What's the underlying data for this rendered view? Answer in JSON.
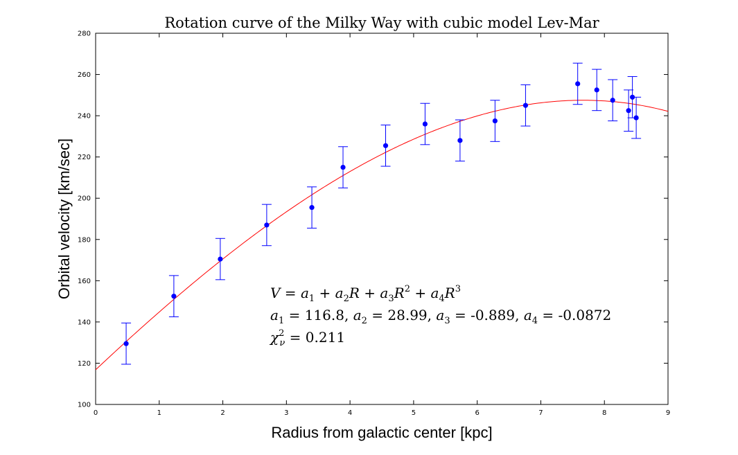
{
  "chart_data": {
    "type": "scatter",
    "title": "Rotation curve of the Milky Way with cubic model Lev-Mar",
    "xlabel": "Radius from galactic center [kpc]",
    "ylabel": "Orbital velocity [km/sec]",
    "xlim": [
      0,
      9
    ],
    "ylim": [
      100,
      280
    ],
    "xticks": [
      0,
      1,
      2,
      3,
      4,
      5,
      6,
      7,
      8,
      9
    ],
    "yticks": [
      100,
      120,
      140,
      160,
      180,
      200,
      220,
      240,
      260,
      280
    ],
    "grid": false,
    "legend": "none",
    "series": [
      {
        "kind": "scatter-errorbar",
        "color": "#0000ff",
        "x": [
          0.48,
          1.23,
          1.96,
          2.69,
          3.4,
          3.89,
          4.56,
          5.18,
          5.73,
          6.28,
          6.76,
          7.58,
          7.88,
          8.13,
          8.38,
          8.44,
          8.5
        ],
        "y": [
          129.5,
          152.5,
          170.5,
          187,
          195.5,
          215,
          225.5,
          236,
          228,
          237.5,
          245,
          255.5,
          252.5,
          247.5,
          242.5,
          249,
          239
        ],
        "yerr": 10
      },
      {
        "kind": "fit-line",
        "color": "#ff0000",
        "model": "cubic",
        "coefficients": [
          116.8,
          28.99,
          -0.889,
          -0.0872
        ]
      }
    ],
    "annotations": {
      "equation": {
        "V": "V",
        "R": "R",
        "a": "a",
        "eq": " = ",
        "plus": " + ",
        "sub1": "1",
        "sub2": "2",
        "sub3": "3",
        "sub4": "4",
        "pow2": "2",
        "pow3": "3"
      },
      "coefficients": {
        "a1_value": "116.8",
        "a2_value": "28.99",
        "a3_value": "-0.889",
        "a4_value": "-0.0872",
        "sep": ", "
      },
      "chi": {
        "chi": "χ",
        "nu": "ν",
        "pow2": "2",
        "value": "0.211"
      }
    }
  }
}
